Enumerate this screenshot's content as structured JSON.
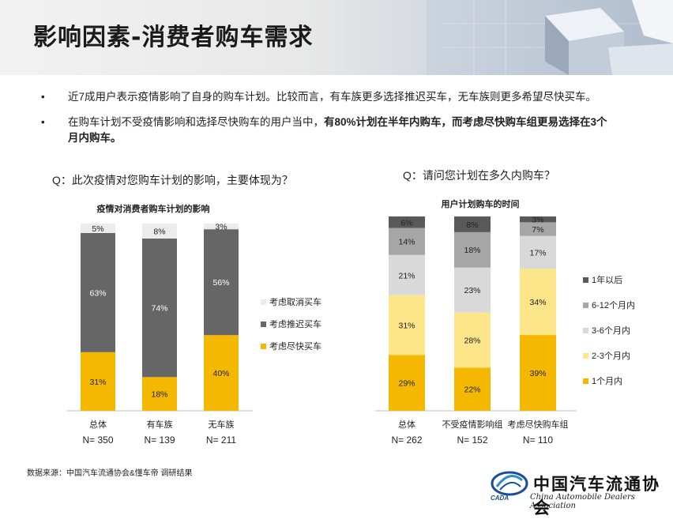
{
  "page": {
    "title": "影响因素-消费者购车需求",
    "bullet_symbol": "•",
    "bullets": [
      {
        "text": "近7成用户表示疫情影响了自身的购车计划。比较而言，有车族更多选择推迟买车，无车族则更多希望尽快买车。"
      },
      {
        "text_pre": "在购车计划不受疫情影响和选择尽快购车的用户当中，",
        "text_bold": "有80%计划在半年内购车，而考虑尽快购车组更易选择在3个月内购车。"
      }
    ],
    "question_left": "Q：此次疫情对您购车计划的影响，主要体现为？",
    "question_right": "Q：请问您计划在多久内购车？",
    "source": "数据来源：中国汽车流通协会&懂车帝 调研结果",
    "logo": {
      "cn": "中国汽车流通协会",
      "en": "China Automobile Dealers Association",
      "abbr": "CADA"
    }
  },
  "colors": {
    "gold": "#f5b800",
    "dark_gray": "#666666",
    "light_gray": "#ececec",
    "med_gray": "#a6a6a6",
    "pale_gray": "#d9d9d9",
    "pale_yellow": "#fde58a",
    "darkest_gray": "#595959"
  },
  "chart_data": [
    {
      "type": "bar",
      "stacked": true,
      "title": "疫情对消费者购车计划的影响",
      "categories": [
        "总体",
        "有车族",
        "无车族"
      ],
      "sample_sizes": [
        "N= 350",
        "N= 139",
        "N= 211"
      ],
      "series": [
        {
          "name": "考虑尽快买车",
          "values": [
            31,
            18,
            40
          ],
          "labels": [
            "31%",
            "18%",
            "40%"
          ],
          "color": "#f5b800",
          "label_color": "#222222"
        },
        {
          "name": "考虑推迟买车",
          "values": [
            63,
            74,
            56
          ],
          "labels": [
            "63%",
            "74%",
            "56%"
          ],
          "color": "#666666",
          "label_color": "#ffffff"
        },
        {
          "name": "考虑取消买车",
          "values": [
            5,
            8,
            3
          ],
          "labels": [
            "5%",
            "8%",
            "3%"
          ],
          "color": "#ececec",
          "label_color": "#222222"
        }
      ],
      "legend": [
        "考虑取消买车",
        "考虑推迟买车",
        "考虑尽快买车"
      ],
      "legend_position": "right"
    },
    {
      "type": "bar",
      "stacked": true,
      "title": "用户计划购车的时间",
      "categories": [
        "总体",
        "不受疫情影响组",
        "考虑尽快购车组"
      ],
      "sample_sizes": [
        "N= 262",
        "N= 152",
        "N= 110"
      ],
      "series": [
        {
          "name": "1个月内",
          "values": [
            29,
            22,
            39
          ],
          "labels": [
            "29%",
            "22%",
            "39%"
          ],
          "color": "#f5b800",
          "label_color": "#222222"
        },
        {
          "name": "2-3个月内",
          "values": [
            31,
            28,
            34
          ],
          "labels": [
            "31%",
            "28%",
            "34%"
          ],
          "color": "#fde58a",
          "label_color": "#222222"
        },
        {
          "name": "3-6个月内",
          "values": [
            21,
            23,
            17
          ],
          "labels": [
            "21%",
            "23%",
            "17%"
          ],
          "color": "#d9d9d9",
          "label_color": "#222222"
        },
        {
          "name": "6-12个月内",
          "values": [
            14,
            18,
            7
          ],
          "labels": [
            "14%",
            "18%",
            "7%"
          ],
          "color": "#a6a6a6",
          "label_color": "#222222"
        },
        {
          "name": "1年以后",
          "values": [
            6,
            8,
            3
          ],
          "labels": [
            "6%",
            "8%",
            "3%"
          ],
          "color": "#595959",
          "label_color": "#222222"
        }
      ],
      "legend": [
        "1年以后",
        "6-12个月内",
        "3-6个月内",
        "2-3个月内",
        "1个月内"
      ],
      "legend_position": "right"
    }
  ]
}
